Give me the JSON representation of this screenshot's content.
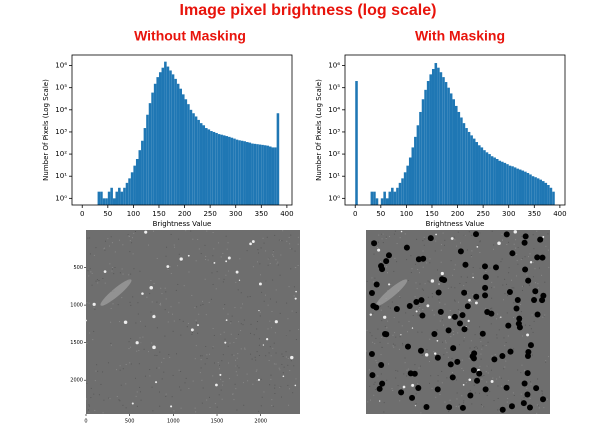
{
  "title": "Image pixel brightness (log scale)",
  "chart_data": [
    {
      "type": "histogram",
      "title": "Without Masking",
      "xlabel": "Brightness Value",
      "ylabel": "Number Of Pixels (Log Scale)",
      "color": "#1f77b4",
      "log_y": true,
      "bins": [
        30,
        35,
        40,
        45,
        50,
        55,
        60,
        65,
        70,
        75,
        80,
        85,
        90,
        95,
        100,
        105,
        110,
        115,
        120,
        125,
        130,
        135,
        140,
        145,
        150,
        155,
        160,
        165,
        170,
        175,
        180,
        185,
        190,
        195,
        200,
        205,
        210,
        215,
        220,
        225,
        230,
        235,
        240,
        245,
        250,
        255,
        260,
        265,
        270,
        275,
        280,
        285,
        290,
        295,
        300,
        305,
        310,
        315,
        320,
        325,
        330,
        335,
        340,
        345,
        350,
        355,
        360,
        365,
        370,
        375,
        380,
        385,
        390
      ],
      "values": [
        2,
        2,
        1,
        1,
        2,
        3,
        1,
        2,
        3,
        2,
        3,
        5,
        8,
        15,
        30,
        60,
        150,
        400,
        1500,
        6000,
        20000,
        60000,
        150000,
        300000,
        500000,
        800000,
        1500000,
        900000,
        600000,
        400000,
        250000,
        150000,
        90000,
        50000,
        30000,
        18000,
        10000,
        7000,
        5000,
        3500,
        2500,
        2000,
        1500,
        1300,
        1100,
        1000,
        900,
        800,
        750,
        700,
        650,
        600,
        550,
        500,
        450,
        420,
        400,
        380,
        350,
        330,
        300,
        290,
        280,
        270,
        260,
        250,
        240,
        220,
        200,
        200,
        7000,
        0
      ],
      "xlim": [
        -20,
        410
      ],
      "ylim": [
        0.5,
        3000000
      ],
      "xticks": [
        0,
        50,
        100,
        150,
        200,
        250,
        300,
        350,
        400
      ],
      "yticks": [
        {
          "value": 1,
          "label": "10⁰"
        },
        {
          "value": 10,
          "label": "10¹"
        },
        {
          "value": 100,
          "label": "10²"
        },
        {
          "value": 1000,
          "label": "10³"
        },
        {
          "value": 10000,
          "label": "10⁴"
        },
        {
          "value": 100000,
          "label": "10⁵"
        },
        {
          "value": 1000000,
          "label": "10⁶"
        }
      ]
    },
    {
      "type": "histogram",
      "title": "With Masking",
      "xlabel": "Brightness Value",
      "ylabel": "Number Of Pixels (Log Scale)",
      "color": "#1f77b4",
      "log_y": true,
      "bins": [
        0,
        5,
        10,
        15,
        20,
        25,
        30,
        35,
        40,
        45,
        50,
        55,
        60,
        65,
        70,
        75,
        80,
        85,
        90,
        95,
        100,
        105,
        110,
        115,
        120,
        125,
        130,
        135,
        140,
        145,
        150,
        155,
        160,
        165,
        170,
        175,
        180,
        185,
        190,
        195,
        200,
        205,
        210,
        215,
        220,
        225,
        230,
        235,
        240,
        245,
        250,
        255,
        260,
        265,
        270,
        275,
        280,
        285,
        290,
        295,
        300,
        305,
        310,
        315,
        320,
        325,
        330,
        335,
        340,
        345,
        350,
        355,
        360,
        365,
        370,
        375,
        380,
        385,
        390
      ],
      "values": [
        200000,
        0,
        0,
        0,
        0,
        0,
        2,
        2,
        1,
        0,
        1,
        2,
        1,
        2,
        3,
        2,
        3,
        5,
        8,
        15,
        30,
        70,
        200,
        600,
        2000,
        8000,
        30000,
        80000,
        200000,
        400000,
        700000,
        1300000,
        800000,
        500000,
        300000,
        180000,
        100000,
        55000,
        30000,
        15000,
        8000,
        4500,
        2500,
        1500,
        1000,
        700,
        500,
        350,
        250,
        200,
        150,
        120,
        100,
        80,
        70,
        60,
        50,
        45,
        40,
        35,
        30,
        28,
        25,
        22,
        20,
        18,
        16,
        14,
        12,
        10,
        9,
        8,
        7,
        6,
        5,
        4,
        3,
        2
      ],
      "xlim": [
        -20,
        410
      ],
      "ylim": [
        0.5,
        3000000
      ],
      "xticks": [
        0,
        50,
        100,
        150,
        200,
        250,
        300,
        350,
        400
      ],
      "yticks": [
        {
          "value": 1,
          "label": "10⁰"
        },
        {
          "value": 10,
          "label": "10¹"
        },
        {
          "value": 100,
          "label": "10²"
        },
        {
          "value": 1000,
          "label": "10³"
        },
        {
          "value": 10000,
          "label": "10⁴"
        },
        {
          "value": 100000,
          "label": "10⁵"
        },
        {
          "value": 1000000,
          "label": "10⁶"
        }
      ]
    }
  ],
  "image_axes": {
    "xticks": [
      0,
      500,
      1000,
      1500,
      2000
    ],
    "yticks": [
      500,
      1000,
      1500,
      2000
    ],
    "xlim": [
      0,
      2450
    ],
    "ylim": [
      0,
      2450
    ]
  }
}
